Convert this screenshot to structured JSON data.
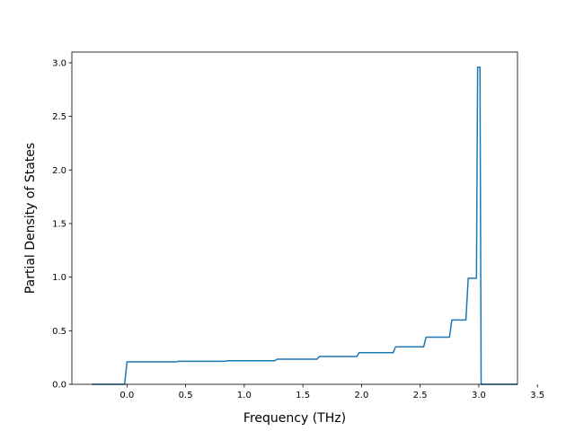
{
  "chart_data": {
    "type": "line",
    "title": "",
    "xlabel": "Frequency (THz)",
    "ylabel": "Partial Density of States",
    "xlim": [
      -0.47,
      3.33
    ],
    "ylim": [
      0.0,
      3.1
    ],
    "x_ticks": [
      0.0,
      0.5,
      1.0,
      1.5,
      2.0,
      2.5,
      3.0,
      3.5
    ],
    "x_tick_labels": [
      "0.0",
      "0.5",
      "1.0",
      "1.5",
      "2.0",
      "2.5",
      "3.0",
      "3.5"
    ],
    "y_ticks": [
      0.0,
      0.5,
      1.0,
      1.5,
      2.0,
      2.5,
      3.0
    ],
    "y_tick_labels": [
      "0.0",
      "0.5",
      "1.0",
      "1.5",
      "2.0",
      "2.5",
      "3.0"
    ],
    "grid": false,
    "legend": false,
    "series": [
      {
        "color": "#1f77b4",
        "x": [
          -0.3,
          -0.02,
          0.0,
          0.42,
          0.44,
          0.84,
          0.86,
          1.26,
          1.28,
          1.62,
          1.64,
          1.96,
          1.98,
          2.27,
          2.29,
          2.53,
          2.55,
          2.75,
          2.77,
          2.89,
          2.91,
          2.98,
          2.99,
          3.01,
          3.02,
          3.04,
          3.33
        ],
        "y": [
          0.0,
          0.0,
          0.21,
          0.21,
          0.215,
          0.215,
          0.22,
          0.22,
          0.235,
          0.235,
          0.26,
          0.26,
          0.295,
          0.295,
          0.35,
          0.35,
          0.44,
          0.44,
          0.6,
          0.6,
          0.99,
          0.99,
          2.96,
          2.96,
          0.0,
          0.0,
          0.0
        ]
      }
    ]
  }
}
